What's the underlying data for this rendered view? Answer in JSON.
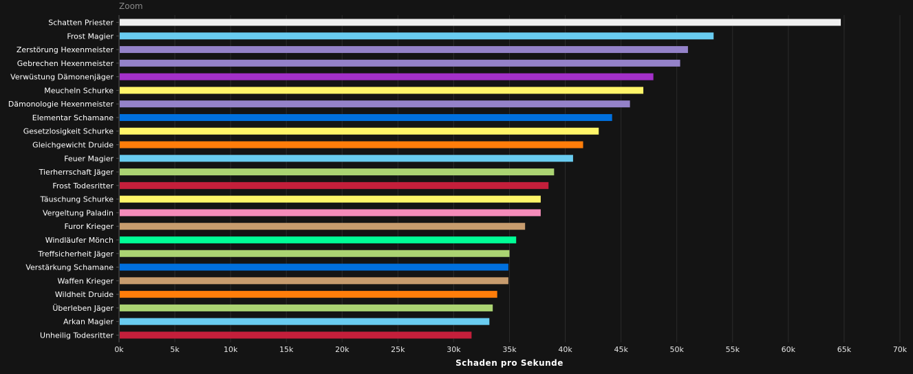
{
  "zoom_label": "Zoom",
  "chart_data": {
    "type": "bar",
    "orientation": "horizontal",
    "xlabel": "Schaden pro Sekunde",
    "ylabel": "",
    "xlim": [
      0,
      70000
    ],
    "x_ticks": [
      "0k",
      "5k",
      "10k",
      "15k",
      "20k",
      "25k",
      "30k",
      "35k",
      "40k",
      "45k",
      "50k",
      "55k",
      "60k",
      "65k",
      "70k"
    ],
    "grid": "vertical",
    "categories": [
      "Schatten Priester",
      "Frost Magier",
      "Zerstörung Hexenmeister",
      "Gebrechen Hexenmeister",
      "Verwüstung Dämonenjäger",
      "Meucheln Schurke",
      "Dämonologie Hexenmeister",
      "Elementar Schamane",
      "Gesetzlosigkeit Schurke",
      "Gleichgewicht Druide",
      "Feuer Magier",
      "Tierherrschaft Jäger",
      "Frost Todesritter",
      "Täuschung Schurke",
      "Vergeltung Paladin",
      "Furor Krieger",
      "Windläufer Mönch",
      "Treffsicherheit Jäger",
      "Verstärkung Schamane",
      "Waffen Krieger",
      "Wildheit Druide",
      "Überleben Jäger",
      "Arkan Magier",
      "Unheilig Todesritter"
    ],
    "values": [
      64700,
      53300,
      51000,
      50300,
      47900,
      47000,
      45800,
      44200,
      43000,
      41600,
      40700,
      39000,
      38500,
      37800,
      37800,
      36400,
      35600,
      35000,
      34900,
      34900,
      33900,
      33500,
      33200,
      31600
    ],
    "colors": [
      "#f0f0f0",
      "#69ccf0",
      "#9482c9",
      "#9482c9",
      "#a330c9",
      "#fff569",
      "#9482c9",
      "#0070de",
      "#fff569",
      "#ff7d0a",
      "#69ccf0",
      "#abd473",
      "#c41f3b",
      "#fff569",
      "#f58cba",
      "#c79c6e",
      "#00ff96",
      "#abd473",
      "#0070de",
      "#c79c6e",
      "#ff7d0a",
      "#abd473",
      "#69ccf0",
      "#c41f3b"
    ]
  }
}
